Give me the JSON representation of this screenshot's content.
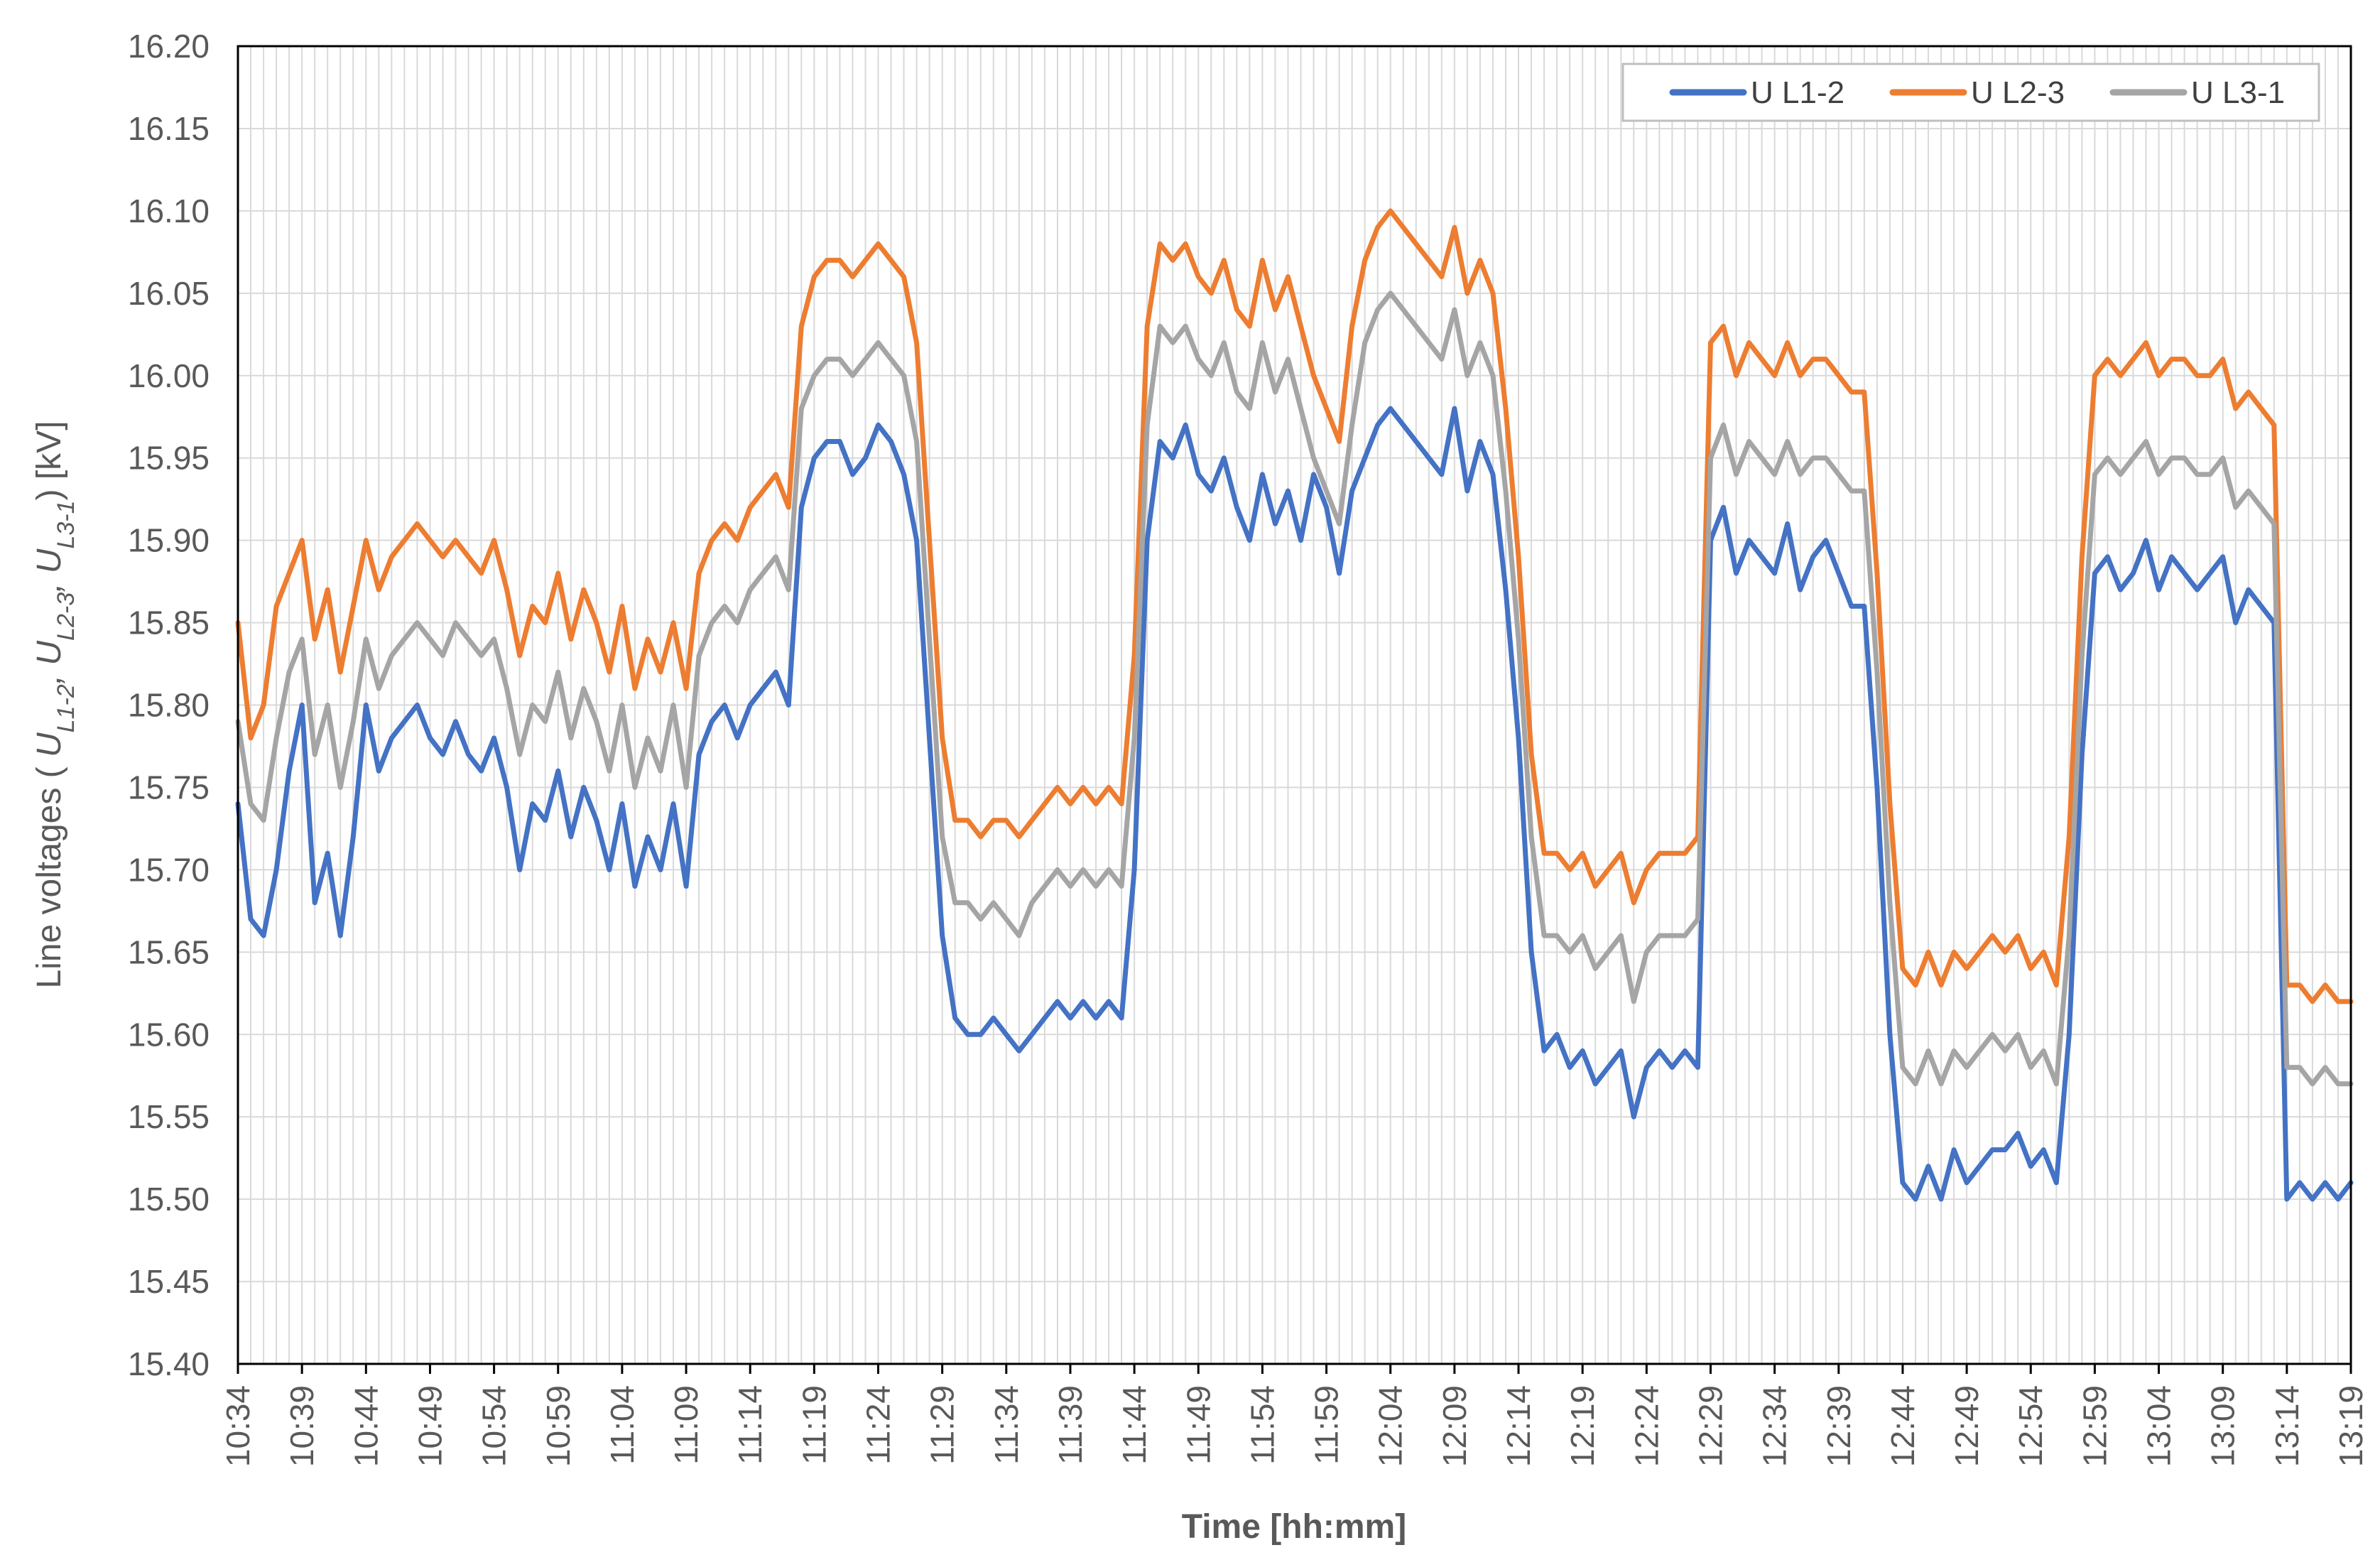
{
  "chart_data": {
    "type": "line",
    "title": "",
    "xlabel": "Time [hh:mm]",
    "ylabel": "Line voltages ( U",
    "ylabel_parts": [
      {
        "text": "Line voltages ( ",
        "style": "normal"
      },
      {
        "text": "U",
        "style": "italic"
      },
      {
        "text": "L1-2",
        "style": "sub"
      },
      {
        "text": ", ",
        "style": "italic"
      },
      {
        "text": "U",
        "style": "italic"
      },
      {
        "text": "L2-3",
        "style": "sub"
      },
      {
        "text": ", ",
        "style": "italic"
      },
      {
        "text": "U",
        "style": "italic"
      },
      {
        "text": "L3-1",
        "style": "sub"
      },
      {
        "text": ") [kV]",
        "style": "normal"
      }
    ],
    "ylim": [
      15.4,
      16.2
    ],
    "yticks": [
      15.4,
      15.45,
      15.5,
      15.55,
      15.6,
      15.65,
      15.7,
      15.75,
      15.8,
      15.85,
      15.9,
      15.95,
      16.0,
      16.05,
      16.1,
      16.15,
      16.2
    ],
    "ytick_labels": [
      "15.40",
      "15.45",
      "15.50",
      "15.55",
      "15.60",
      "15.65",
      "15.70",
      "15.75",
      "15.80",
      "15.85",
      "15.90",
      "15.95",
      "16.00",
      "16.05",
      "16.10",
      "16.15",
      "16.20"
    ],
    "xlim_minutes": [
      0,
      165
    ],
    "xticks": [
      "10:34",
      "10:39",
      "10:44",
      "10:49",
      "10:54",
      "10:59",
      "11:04",
      "11:09",
      "11:14",
      "11:19",
      "11:24",
      "11:29",
      "11:34",
      "11:39",
      "11:44",
      "11:49",
      "11:54",
      "11:59",
      "12:04",
      "12:09",
      "12:14",
      "12:19",
      "12:24",
      "12:29",
      "12:34",
      "12:39",
      "12:44",
      "12:49",
      "12:54",
      "12:59",
      "13:04",
      "13:09",
      "13:14",
      "13:19"
    ],
    "xtick_step_minutes": 5,
    "grid": true,
    "legend_position": "top-right",
    "series": [
      {
        "name": "U L1-2",
        "color": "#4472C4",
        "x": [
          0,
          1,
          2,
          3,
          4,
          5,
          6,
          7,
          8,
          9,
          10,
          11,
          12,
          13,
          14,
          15,
          16,
          17,
          18,
          19,
          20,
          21,
          22,
          23,
          24,
          25,
          26,
          27,
          28,
          29,
          30,
          31,
          32,
          33,
          34,
          35,
          36,
          37,
          38,
          39,
          40,
          41,
          42,
          43,
          44,
          45,
          46,
          47,
          48,
          49,
          50,
          51,
          52,
          53,
          54,
          55,
          56,
          57,
          58,
          59,
          60,
          61,
          62,
          63,
          64,
          65,
          66,
          67,
          68,
          69,
          70,
          71,
          72,
          73,
          74,
          75,
          76,
          77,
          78,
          79,
          80,
          81,
          82,
          83,
          84,
          85,
          86,
          87,
          88,
          89,
          90,
          91,
          92,
          93,
          94,
          95,
          96,
          97,
          98,
          99,
          100,
          101,
          102,
          103,
          104,
          105,
          106,
          107,
          108,
          109,
          110,
          111,
          112,
          113,
          114,
          115,
          116,
          117,
          118,
          119,
          120,
          121,
          122,
          123,
          124,
          125,
          126,
          127,
          128,
          129,
          130,
          131,
          132,
          133,
          134,
          135,
          136,
          137,
          138,
          139,
          140,
          141,
          142,
          143,
          144,
          145,
          146,
          147,
          148,
          149,
          150,
          151,
          152,
          153,
          154,
          155,
          156,
          157,
          158,
          159,
          160,
          161,
          162,
          163,
          164,
          165
        ],
        "values": [
          15.74,
          15.67,
          15.66,
          15.7,
          15.76,
          15.8,
          15.68,
          15.71,
          15.66,
          15.72,
          15.8,
          15.76,
          15.78,
          15.79,
          15.8,
          15.78,
          15.77,
          15.79,
          15.77,
          15.76,
          15.78,
          15.75,
          15.7,
          15.74,
          15.73,
          15.76,
          15.72,
          15.75,
          15.73,
          15.7,
          15.74,
          15.69,
          15.72,
          15.7,
          15.74,
          15.69,
          15.77,
          15.79,
          15.8,
          15.78,
          15.8,
          15.81,
          15.82,
          15.8,
          15.92,
          15.95,
          15.96,
          15.96,
          15.94,
          15.95,
          15.97,
          15.96,
          15.94,
          15.9,
          15.78,
          15.66,
          15.61,
          15.6,
          15.6,
          15.61,
          15.6,
          15.59,
          15.6,
          15.61,
          15.62,
          15.61,
          15.62,
          15.61,
          15.62,
          15.61,
          15.7,
          15.9,
          15.96,
          15.95,
          15.97,
          15.94,
          15.93,
          15.95,
          15.92,
          15.9,
          15.94,
          15.91,
          15.93,
          15.9,
          15.94,
          15.92,
          15.88,
          15.93,
          15.95,
          15.97,
          15.98,
          15.97,
          15.96,
          15.95,
          15.94,
          15.98,
          15.93,
          15.96,
          15.94,
          15.87,
          15.78,
          15.65,
          15.59,
          15.6,
          15.58,
          15.59,
          15.57,
          15.58,
          15.59,
          15.55,
          15.58,
          15.59,
          15.58,
          15.59,
          15.58,
          15.9,
          15.92,
          15.88,
          15.9,
          15.89,
          15.88,
          15.91,
          15.87,
          15.89,
          15.9,
          15.88,
          15.86,
          15.86,
          15.75,
          15.6,
          15.51,
          15.5,
          15.52,
          15.5,
          15.53,
          15.51,
          15.52,
          15.53,
          15.53,
          15.54,
          15.52,
          15.53,
          15.51,
          15.6,
          15.77,
          15.88,
          15.89,
          15.87,
          15.88,
          15.9,
          15.87,
          15.89,
          15.88,
          15.87,
          15.88,
          15.89,
          15.85,
          15.87,
          15.86,
          15.85,
          15.5,
          15.51,
          15.5,
          15.51,
          15.5,
          15.51
        ]
      },
      {
        "name": "U L2-3",
        "color": "#ED7D31",
        "x": [
          0,
          1,
          2,
          3,
          4,
          5,
          6,
          7,
          8,
          9,
          10,
          11,
          12,
          13,
          14,
          15,
          16,
          17,
          18,
          19,
          20,
          21,
          22,
          23,
          24,
          25,
          26,
          27,
          28,
          29,
          30,
          31,
          32,
          33,
          34,
          35,
          36,
          37,
          38,
          39,
          40,
          41,
          42,
          43,
          44,
          45,
          46,
          47,
          48,
          49,
          50,
          51,
          52,
          53,
          54,
          55,
          56,
          57,
          58,
          59,
          60,
          61,
          62,
          63,
          64,
          65,
          66,
          67,
          68,
          69,
          70,
          71,
          72,
          73,
          74,
          75,
          76,
          77,
          78,
          79,
          80,
          81,
          82,
          83,
          84,
          85,
          86,
          87,
          88,
          89,
          90,
          91,
          92,
          93,
          94,
          95,
          96,
          97,
          98,
          99,
          100,
          101,
          102,
          103,
          104,
          105,
          106,
          107,
          108,
          109,
          110,
          111,
          112,
          113,
          114,
          115,
          116,
          117,
          118,
          119,
          120,
          121,
          122,
          123,
          124,
          125,
          126,
          127,
          128,
          129,
          130,
          131,
          132,
          133,
          134,
          135,
          136,
          137,
          138,
          139,
          140,
          141,
          142,
          143,
          144,
          145,
          146,
          147,
          148,
          149,
          150,
          151,
          152,
          153,
          154,
          155,
          156,
          157,
          158,
          159,
          160,
          161,
          162,
          163,
          164,
          165
        ],
        "values": [
          15.85,
          15.78,
          15.8,
          15.86,
          15.88,
          15.9,
          15.84,
          15.87,
          15.82,
          15.86,
          15.9,
          15.87,
          15.89,
          15.9,
          15.91,
          15.9,
          15.89,
          15.9,
          15.89,
          15.88,
          15.9,
          15.87,
          15.83,
          15.86,
          15.85,
          15.88,
          15.84,
          15.87,
          15.85,
          15.82,
          15.86,
          15.81,
          15.84,
          15.82,
          15.85,
          15.81,
          15.88,
          15.9,
          15.91,
          15.9,
          15.92,
          15.93,
          15.94,
          15.92,
          16.03,
          16.06,
          16.07,
          16.07,
          16.06,
          16.07,
          16.08,
          16.07,
          16.06,
          16.02,
          15.9,
          15.78,
          15.73,
          15.73,
          15.72,
          15.73,
          15.73,
          15.72,
          15.73,
          15.74,
          15.75,
          15.74,
          15.75,
          15.74,
          15.75,
          15.74,
          15.83,
          16.03,
          16.08,
          16.07,
          16.08,
          16.06,
          16.05,
          16.07,
          16.04,
          16.03,
          16.07,
          16.04,
          16.06,
          16.03,
          16.0,
          15.98,
          15.96,
          16.03,
          16.07,
          16.09,
          16.1,
          16.09,
          16.08,
          16.07,
          16.06,
          16.09,
          16.05,
          16.07,
          16.05,
          15.98,
          15.89,
          15.77,
          15.71,
          15.71,
          15.7,
          15.71,
          15.69,
          15.7,
          15.71,
          15.68,
          15.7,
          15.71,
          15.71,
          15.71,
          15.72,
          16.02,
          16.03,
          16.0,
          16.02,
          16.01,
          16.0,
          16.02,
          16.0,
          16.01,
          16.01,
          16.0,
          15.99,
          15.99,
          15.88,
          15.74,
          15.64,
          15.63,
          15.65,
          15.63,
          15.65,
          15.64,
          15.65,
          15.66,
          15.65,
          15.66,
          15.64,
          15.65,
          15.63,
          15.72,
          15.89,
          16.0,
          16.01,
          16.0,
          16.01,
          16.02,
          16.0,
          16.01,
          16.01,
          16.0,
          16.0,
          16.01,
          15.98,
          15.99,
          15.98,
          15.97,
          15.63,
          15.63,
          15.62,
          15.63,
          15.62,
          15.62
        ]
      },
      {
        "name": "U L3-1",
        "color": "#A5A5A5",
        "x": [
          0,
          1,
          2,
          3,
          4,
          5,
          6,
          7,
          8,
          9,
          10,
          11,
          12,
          13,
          14,
          15,
          16,
          17,
          18,
          19,
          20,
          21,
          22,
          23,
          24,
          25,
          26,
          27,
          28,
          29,
          30,
          31,
          32,
          33,
          34,
          35,
          36,
          37,
          38,
          39,
          40,
          41,
          42,
          43,
          44,
          45,
          46,
          47,
          48,
          49,
          50,
          51,
          52,
          53,
          54,
          55,
          56,
          57,
          58,
          59,
          60,
          61,
          62,
          63,
          64,
          65,
          66,
          67,
          68,
          69,
          70,
          71,
          72,
          73,
          74,
          75,
          76,
          77,
          78,
          79,
          80,
          81,
          82,
          83,
          84,
          85,
          86,
          87,
          88,
          89,
          90,
          91,
          92,
          93,
          94,
          95,
          96,
          97,
          98,
          99,
          100,
          101,
          102,
          103,
          104,
          105,
          106,
          107,
          108,
          109,
          110,
          111,
          112,
          113,
          114,
          115,
          116,
          117,
          118,
          119,
          120,
          121,
          122,
          123,
          124,
          125,
          126,
          127,
          128,
          129,
          130,
          131,
          132,
          133,
          134,
          135,
          136,
          137,
          138,
          139,
          140,
          141,
          142,
          143,
          144,
          145,
          146,
          147,
          148,
          149,
          150,
          151,
          152,
          153,
          154,
          155,
          156,
          157,
          158,
          159,
          160,
          161,
          162,
          163,
          164,
          165
        ],
        "values": [
          15.79,
          15.74,
          15.73,
          15.78,
          15.82,
          15.84,
          15.77,
          15.8,
          15.75,
          15.79,
          15.84,
          15.81,
          15.83,
          15.84,
          15.85,
          15.84,
          15.83,
          15.85,
          15.84,
          15.83,
          15.84,
          15.81,
          15.77,
          15.8,
          15.79,
          15.82,
          15.78,
          15.81,
          15.79,
          15.76,
          15.8,
          15.75,
          15.78,
          15.76,
          15.8,
          15.75,
          15.83,
          15.85,
          15.86,
          15.85,
          15.87,
          15.88,
          15.89,
          15.87,
          15.98,
          16.0,
          16.01,
          16.01,
          16.0,
          16.01,
          16.02,
          16.01,
          16.0,
          15.96,
          15.84,
          15.72,
          15.68,
          15.68,
          15.67,
          15.68,
          15.67,
          15.66,
          15.68,
          15.69,
          15.7,
          15.69,
          15.7,
          15.69,
          15.7,
          15.69,
          15.78,
          15.97,
          16.03,
          16.02,
          16.03,
          16.01,
          16.0,
          16.02,
          15.99,
          15.98,
          16.02,
          15.99,
          16.01,
          15.98,
          15.95,
          15.93,
          15.91,
          15.97,
          16.02,
          16.04,
          16.05,
          16.04,
          16.03,
          16.02,
          16.01,
          16.04,
          16.0,
          16.02,
          16.0,
          15.93,
          15.84,
          15.72,
          15.66,
          15.66,
          15.65,
          15.66,
          15.64,
          15.65,
          15.66,
          15.62,
          15.65,
          15.66,
          15.66,
          15.66,
          15.67,
          15.95,
          15.97,
          15.94,
          15.96,
          15.95,
          15.94,
          15.96,
          15.94,
          15.95,
          15.95,
          15.94,
          15.93,
          15.93,
          15.82,
          15.68,
          15.58,
          15.57,
          15.59,
          15.57,
          15.59,
          15.58,
          15.59,
          15.6,
          15.59,
          15.6,
          15.58,
          15.59,
          15.57,
          15.66,
          15.83,
          15.94,
          15.95,
          15.94,
          15.95,
          15.96,
          15.94,
          15.95,
          15.95,
          15.94,
          15.94,
          15.95,
          15.92,
          15.93,
          15.92,
          15.91,
          15.58,
          15.58,
          15.57,
          15.58,
          15.57,
          15.57
        ]
      }
    ]
  }
}
